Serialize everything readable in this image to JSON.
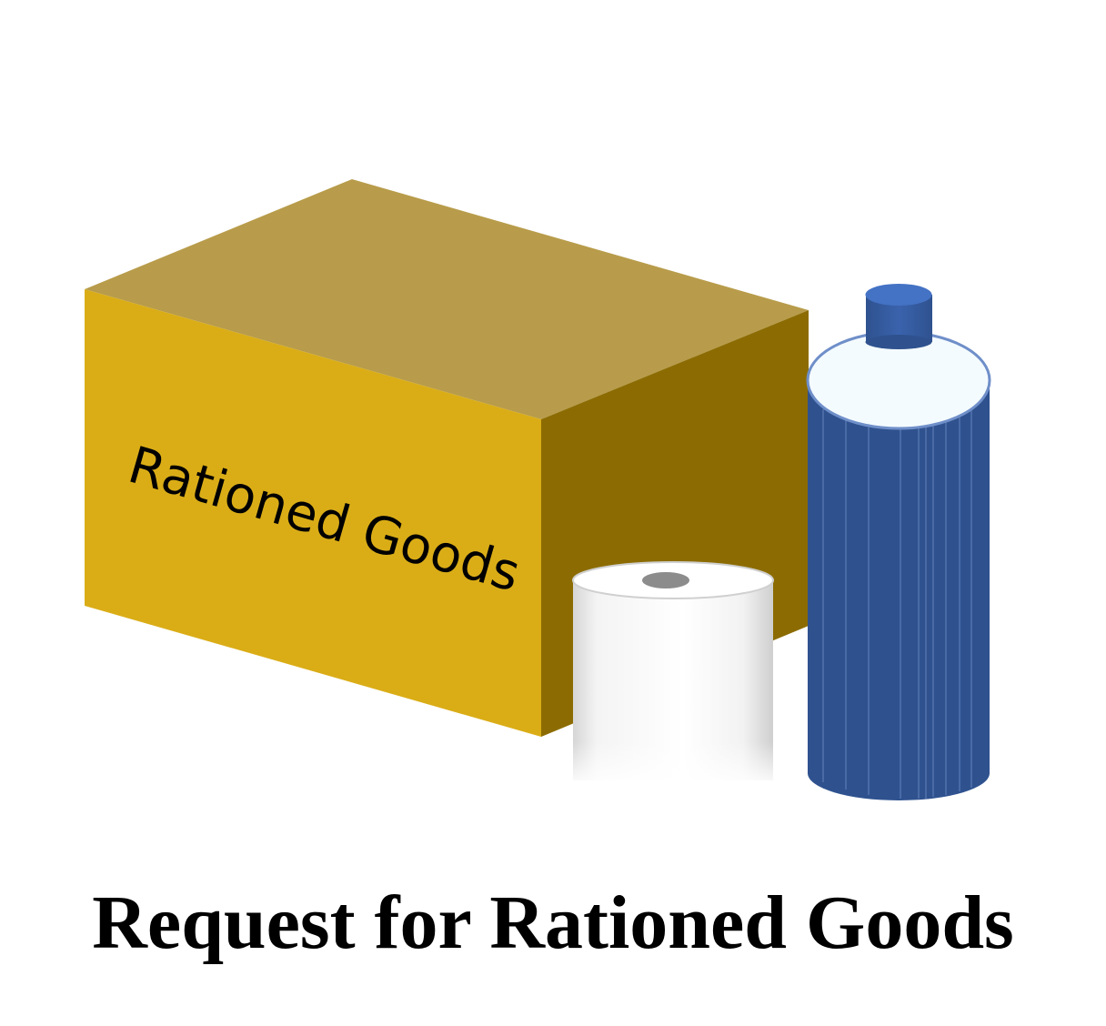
{
  "box": {
    "label": "Rationed Goods",
    "colors": {
      "top": "#B89C4B",
      "front": "#DAAD17",
      "side": "#8C6C02"
    }
  },
  "toilet_roll": {
    "colors": {
      "body": "#F4F4F4",
      "core": "#8C8C8C"
    }
  },
  "bottle": {
    "colors": {
      "body": "#2F528F",
      "cap": "#4472C4",
      "shoulder": "#F4FBFE"
    }
  },
  "caption": "Request for Rationed Goods"
}
